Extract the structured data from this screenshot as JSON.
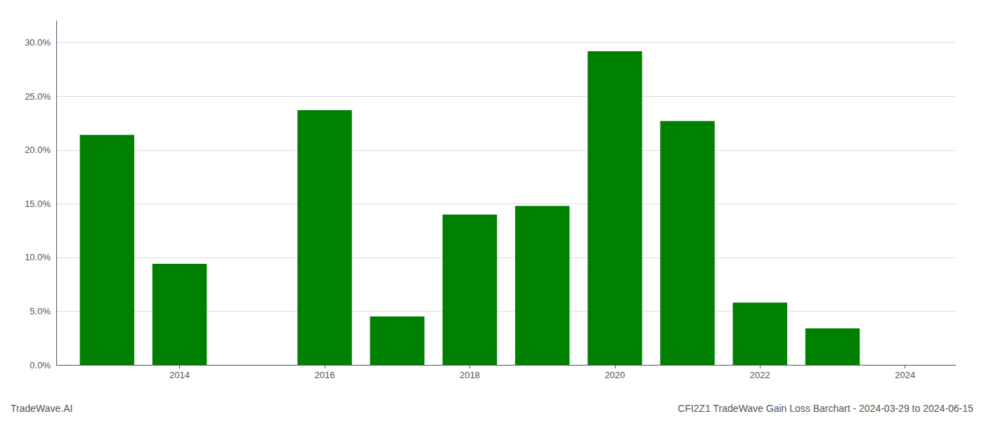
{
  "chart_data": {
    "type": "bar",
    "title": "CFI2Z1 TradeWave Gain Loss Barchart - 2024-03-29 to 2024-06-15",
    "annotations": [
      "TradeWave.AI"
    ],
    "x": [
      2013,
      2014,
      2016,
      2017,
      2018,
      2019,
      2020,
      2021,
      2022,
      2023
    ],
    "values": [
      0.214,
      0.094,
      0.237,
      0.045,
      0.14,
      0.148,
      0.292,
      0.227,
      0.058,
      0.034
    ],
    "color": "#008000",
    "xlim": [
      2012.3,
      2024.7
    ],
    "xticks": [
      2014,
      2016,
      2018,
      2020,
      2022,
      2024
    ],
    "ylim": [
      0,
      0.32
    ],
    "yticks": [
      {
        "value": 0.0,
        "label": "0.0%"
      },
      {
        "value": 0.05,
        "label": "5.0%"
      },
      {
        "value": 0.1,
        "label": "10.0%"
      },
      {
        "value": 0.15,
        "label": "15.0%"
      },
      {
        "value": 0.2,
        "label": "20.0%"
      },
      {
        "value": 0.25,
        "label": "25.0%"
      },
      {
        "value": 0.3,
        "label": "30.0%"
      }
    ],
    "grid": true
  }
}
